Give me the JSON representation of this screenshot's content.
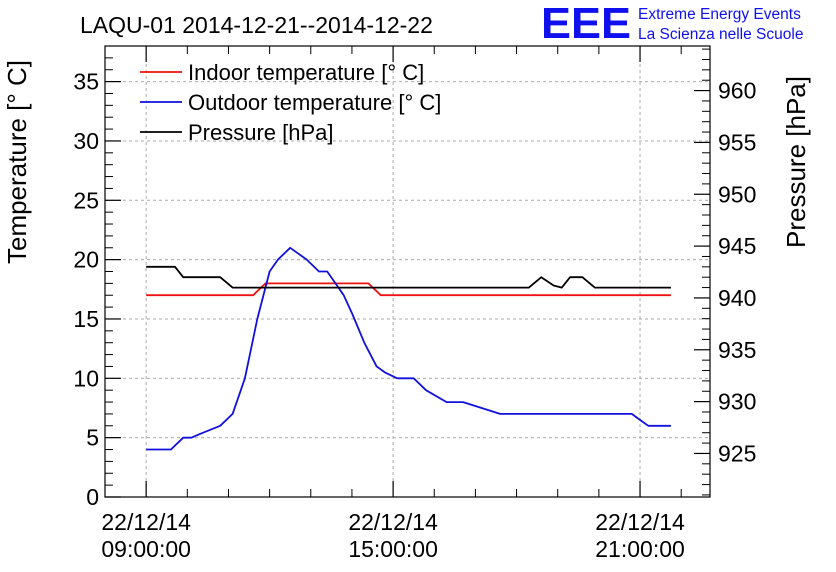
{
  "logo": {
    "letters": "EEE",
    "line1": "Extreme Energy Events",
    "line2": "La Scienza nelle Scuole"
  },
  "colors": {
    "indoor": "#ee1111",
    "outdoor": "#1111dd",
    "pressure": "#000000",
    "grid": "#aaaaaa",
    "logo": "#1010ee"
  },
  "chart_data": {
    "type": "line",
    "title": "LAQU-01 2014-12-21--2014-12-22",
    "ylabel": "Temperature [° C]",
    "y2label": "Pressure [hPa]",
    "xlim": [
      8.0,
      22.7
    ],
    "ylim": [
      0,
      38
    ],
    "y2lim": [
      920.8,
      964.3
    ],
    "grid": true,
    "legend_position": "top-left",
    "x_ticks": [
      {
        "x": 9,
        "date": "22/12/14",
        "time": "09:00:00"
      },
      {
        "x": 15,
        "date": "22/12/14",
        "time": "15:00:00"
      },
      {
        "x": 21,
        "date": "22/12/14",
        "time": "21:00:00"
      }
    ],
    "y_ticks": [
      0,
      5,
      10,
      15,
      20,
      25,
      30,
      35
    ],
    "y2_ticks": [
      925,
      930,
      935,
      940,
      945,
      950,
      955,
      960
    ],
    "series": [
      {
        "name": "Indoor temperature [° C]",
        "axis": "left",
        "color_key": "indoor",
        "x": [
          9.0,
          11.6,
          11.9,
          13.0,
          14.1,
          14.4,
          14.7,
          15.0,
          16.0,
          18.0,
          20.0,
          21.75
        ],
        "y": [
          17,
          17,
          18,
          18,
          18,
          18,
          17,
          17,
          17,
          17,
          17,
          17
        ]
      },
      {
        "name": "Outdoor temperature [° C]",
        "axis": "left",
        "color_key": "outdoor",
        "x": [
          9.0,
          9.6,
          9.9,
          10.1,
          10.3,
          10.8,
          11.1,
          11.4,
          11.7,
          12.0,
          12.2,
          12.5,
          12.7,
          12.9,
          13.2,
          13.4,
          13.6,
          13.8,
          14.0,
          14.3,
          14.6,
          14.8,
          15.1,
          15.5,
          15.8,
          16.3,
          16.7,
          17.6,
          19.0,
          20.0,
          20.6,
          20.8,
          21.0,
          21.2,
          21.75
        ],
        "y": [
          4,
          4,
          5,
          5,
          5.3,
          6,
          7,
          10,
          15,
          19,
          20,
          21,
          20.5,
          20,
          19,
          19,
          18,
          17,
          15.5,
          13,
          11,
          10.5,
          10,
          10,
          9,
          8,
          8,
          7,
          7,
          7,
          7,
          7,
          6.5,
          6,
          6
        ]
      },
      {
        "name": "Pressure [hPa]",
        "axis": "right",
        "color_key": "pressure",
        "x": [
          9.0,
          9.7,
          9.9,
          10.8,
          11.1,
          13.0,
          15.0,
          17.0,
          18.3,
          18.6,
          18.9,
          19.1,
          19.3,
          19.6,
          19.9,
          20.2,
          20.5,
          21.0,
          21.75
        ],
        "y": [
          943,
          943,
          942,
          942,
          941,
          941,
          941,
          941,
          941,
          942,
          941.2,
          941,
          942,
          942,
          941,
          941,
          941,
          941,
          941
        ]
      }
    ]
  }
}
